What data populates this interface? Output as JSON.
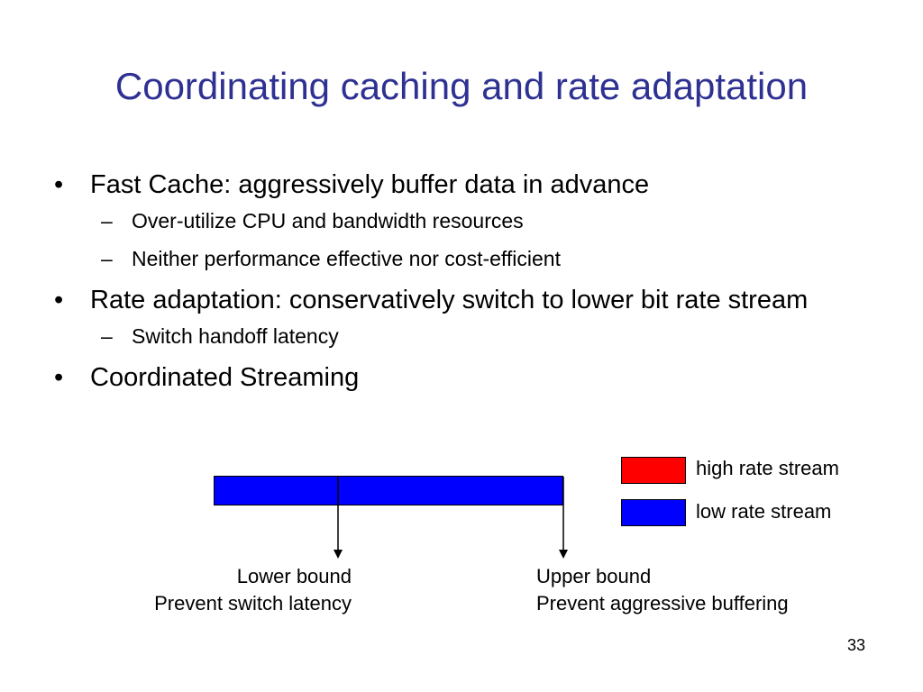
{
  "slide": {
    "title": "Coordinating caching and rate adaptation",
    "bullets": [
      {
        "text": "Fast Cache: aggressively buffer data in advance",
        "subs": [
          "Over-utilize CPU and bandwidth resources",
          "Neither performance effective nor cost-efficient"
        ]
      },
      {
        "text": "Rate adaptation: conservatively switch to lower bit rate stream",
        "subs": [
          "Switch handoff latency"
        ]
      },
      {
        "text": "Coordinated Streaming",
        "subs": []
      }
    ],
    "bullet_glyph": "•",
    "sub_glyph": "–",
    "diagram": {
      "legend": [
        {
          "label": "high rate stream",
          "color": "#FF0000"
        },
        {
          "label": "low rate stream",
          "color": "#0000FF"
        }
      ],
      "lower_bound": {
        "line1": "Lower bound",
        "line2": "Prevent switch latency"
      },
      "upper_bound": {
        "line1": "Upper bound",
        "line2": "Prevent aggressive buffering"
      }
    },
    "page_number": "33",
    "colors": {
      "title": "#2E3192",
      "low_rate": "#0000FF",
      "high_rate": "#FF0000"
    }
  }
}
